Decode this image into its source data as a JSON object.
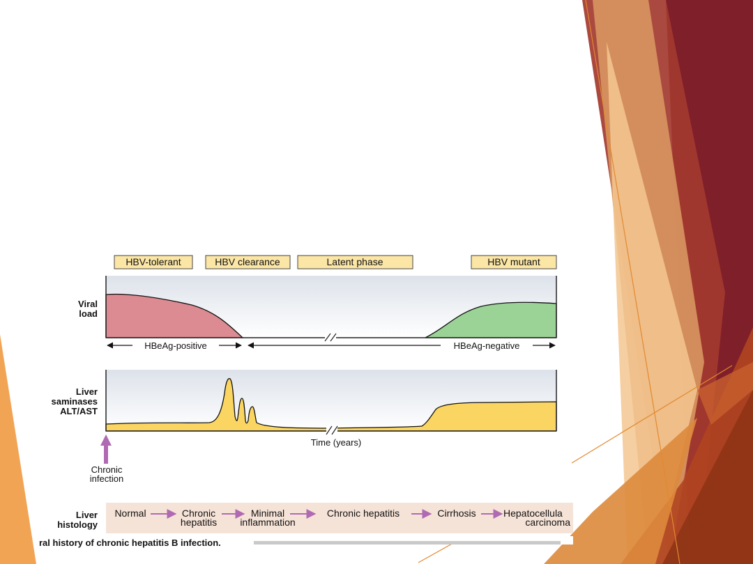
{
  "phases": [
    {
      "label": "HBV-tolerant"
    },
    {
      "label": "HBV clearance"
    },
    {
      "label": "Latent phase"
    },
    {
      "label": "HBV mutant"
    }
  ],
  "viral_load": {
    "label_line1": "Viral",
    "label_line2": "load",
    "antigen_positive": "HBeAg-positive",
    "antigen_negative": "HBeAg-negative"
  },
  "transaminases": {
    "label_line1": "Liver",
    "label_line2": "saminases",
    "label_line3": "ALT/AST",
    "time_axis": "Time (years)"
  },
  "onset": {
    "line1": "Chronic",
    "line2": "infection"
  },
  "histology": {
    "label_line1": "Liver",
    "label_line2": "histology",
    "stages": [
      {
        "line1": "Normal",
        "line2": ""
      },
      {
        "line1": "Chronic",
        "line2": "hepatitis"
      },
      {
        "line1": "Minimal",
        "line2": "inflammation"
      },
      {
        "line1": "Chronic hepatitis",
        "line2": ""
      },
      {
        "line1": "Cirrhosis",
        "line2": ""
      },
      {
        "line1": "Hepatocellula",
        "line2": "carcinoma"
      }
    ]
  },
  "caption": {
    "text": "ral history of chronic hepatitis B infection."
  },
  "colors": {
    "phase_box": "#fbe6a6",
    "viral_red": "#db8b91",
    "viral_green": "#9bd396",
    "alt_yellow": "#fbd561",
    "histology_band": "#f6e3d7",
    "arrow_purple": "#b06ab3"
  }
}
